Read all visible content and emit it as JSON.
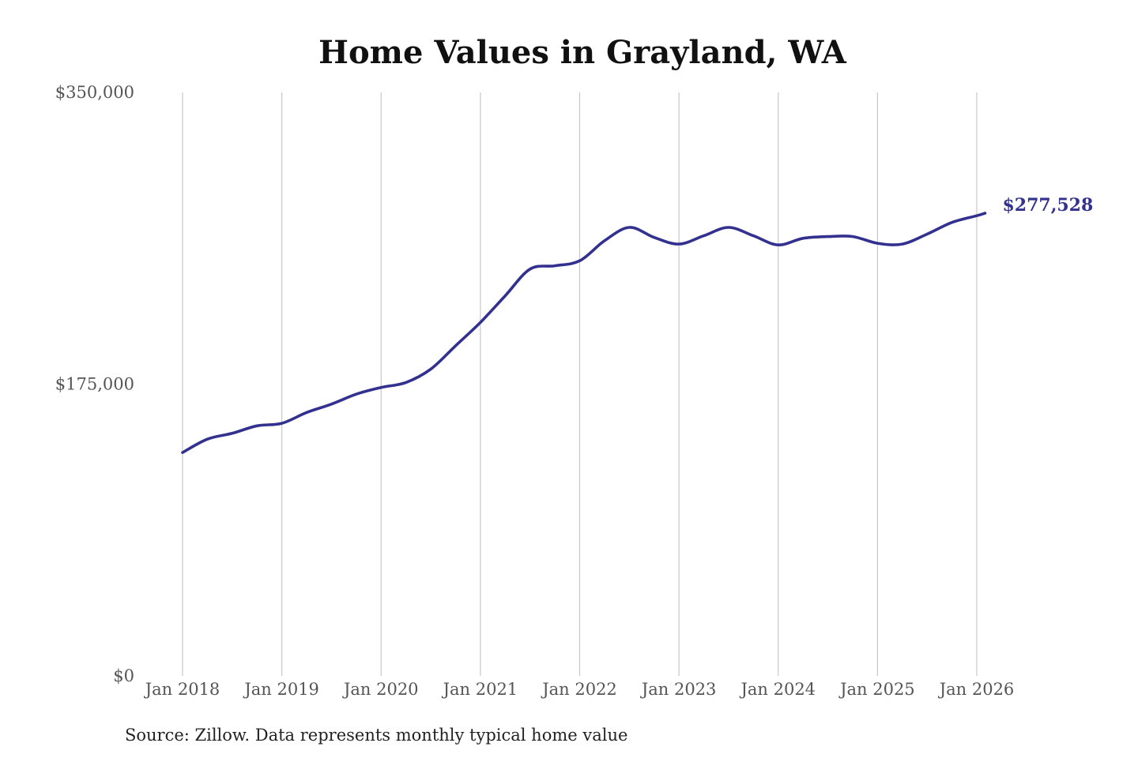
{
  "chart_data": {
    "type": "line",
    "title": "Home Values in Grayland, WA",
    "source": "Source: Zillow. Data represents monthly typical home value",
    "xlabel": "",
    "ylabel": "",
    "ylim": [
      0,
      350000
    ],
    "yticks": [
      {
        "value": 0,
        "label": "$0"
      },
      {
        "value": 175000,
        "label": "$175,000"
      },
      {
        "value": 350000,
        "label": "$350,000"
      }
    ],
    "xticks": [
      {
        "value": "2018-01",
        "label": "Jan 2018"
      },
      {
        "value": "2019-01",
        "label": "Jan 2019"
      },
      {
        "value": "2020-01",
        "label": "Jan 2020"
      },
      {
        "value": "2021-01",
        "label": "Jan 2021"
      },
      {
        "value": "2022-01",
        "label": "Jan 2022"
      },
      {
        "value": "2023-01",
        "label": "Jan 2023"
      },
      {
        "value": "2024-01",
        "label": "Jan 2024"
      },
      {
        "value": "2025-01",
        "label": "Jan 2025"
      },
      {
        "value": "2026-01",
        "label": "Jan 2026"
      }
    ],
    "grid": {
      "vertical": true,
      "horizontal": false
    },
    "legend": "none",
    "series": [
      {
        "color": "#33318f",
        "end_label": "$277,528",
        "points": [
          {
            "x": "2018-01",
            "y": 134000
          },
          {
            "x": "2018-04",
            "y": 142000
          },
          {
            "x": "2018-07",
            "y": 145500
          },
          {
            "x": "2018-10",
            "y": 150000
          },
          {
            "x": "2019-01",
            "y": 151500
          },
          {
            "x": "2019-04",
            "y": 158000
          },
          {
            "x": "2019-07",
            "y": 163000
          },
          {
            "x": "2019-10",
            "y": 169000
          },
          {
            "x": "2020-01",
            "y": 173000
          },
          {
            "x": "2020-04",
            "y": 176000
          },
          {
            "x": "2020-07",
            "y": 184000
          },
          {
            "x": "2020-10",
            "y": 198000
          },
          {
            "x": "2021-01",
            "y": 212000
          },
          {
            "x": "2021-04",
            "y": 228000
          },
          {
            "x": "2021-07",
            "y": 244000
          },
          {
            "x": "2021-10",
            "y": 246000
          },
          {
            "x": "2022-01",
            "y": 249000
          },
          {
            "x": "2022-04",
            "y": 261000
          },
          {
            "x": "2022-07",
            "y": 269000
          },
          {
            "x": "2022-10",
            "y": 263000
          },
          {
            "x": "2023-01",
            "y": 259000
          },
          {
            "x": "2023-04",
            "y": 264000
          },
          {
            "x": "2023-07",
            "y": 269000
          },
          {
            "x": "2023-10",
            "y": 264000
          },
          {
            "x": "2024-01",
            "y": 258500
          },
          {
            "x": "2024-04",
            "y": 262500
          },
          {
            "x": "2024-07",
            "y": 263500
          },
          {
            "x": "2024-10",
            "y": 263500
          },
          {
            "x": "2025-01",
            "y": 259500
          },
          {
            "x": "2025-04",
            "y": 259000
          },
          {
            "x": "2025-07",
            "y": 265000
          },
          {
            "x": "2025-10",
            "y": 272000
          },
          {
            "x": "2026-01",
            "y": 276000
          },
          {
            "x": "2026-02",
            "y": 277528
          }
        ]
      }
    ]
  }
}
